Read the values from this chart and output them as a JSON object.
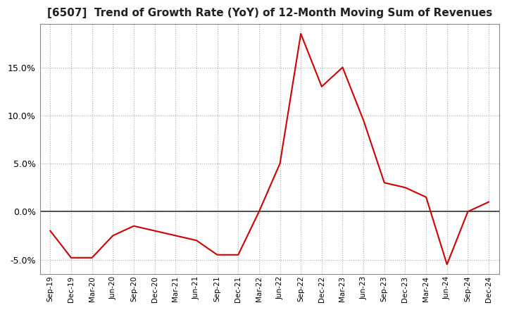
{
  "title": "[6507]  Trend of Growth Rate (YoY) of 12-Month Moving Sum of Revenues",
  "title_fontsize": 11,
  "line_color": "#cc0000",
  "background_color": "#ffffff",
  "grid_color": "#aaaaaa",
  "ylim": [
    -6.5,
    19.5
  ],
  "yticks": [
    -5.0,
    0.0,
    5.0,
    10.0,
    15.0
  ],
  "x_labels": [
    "Sep-19",
    "Dec-19",
    "Mar-20",
    "Jun-20",
    "Sep-20",
    "Dec-20",
    "Mar-21",
    "Jun-21",
    "Sep-21",
    "Dec-21",
    "Mar-22",
    "Jun-22",
    "Sep-22",
    "Dec-22",
    "Mar-23",
    "Jun-23",
    "Sep-23",
    "Dec-23",
    "Mar-24",
    "Jun-24",
    "Sep-24",
    "Dec-24"
  ],
  "y_values": [
    -2.0,
    -4.8,
    -4.8,
    -2.5,
    -1.5,
    -2.0,
    -2.5,
    -3.0,
    -4.5,
    -4.5,
    0.0,
    5.0,
    18.5,
    13.0,
    15.0,
    9.5,
    3.0,
    2.5,
    1.5,
    -5.5,
    0.0,
    1.0
  ]
}
